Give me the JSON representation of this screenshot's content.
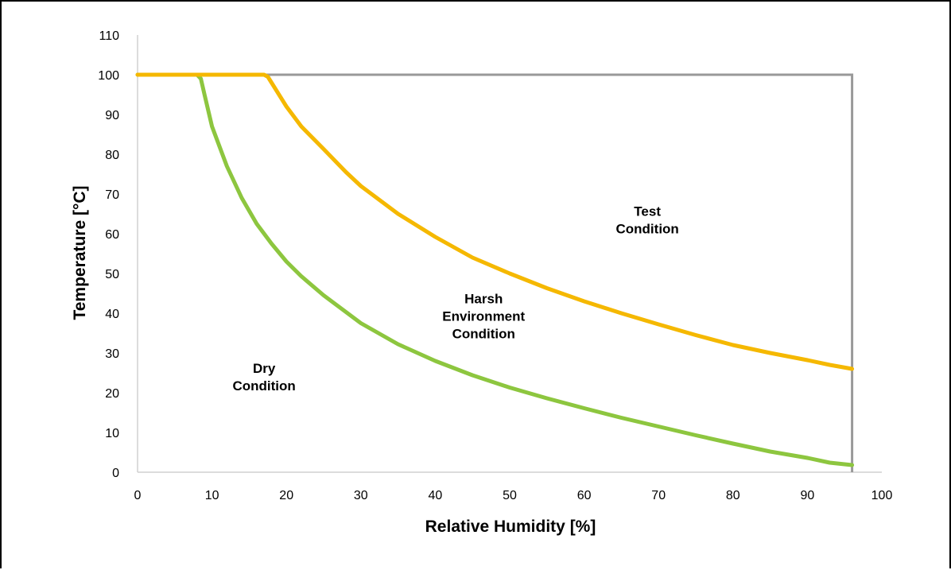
{
  "chart_data": {
    "type": "line",
    "title": "",
    "xlabel": "Relative Humidity [%]",
    "ylabel": "Temperature [°C]",
    "xlim": [
      0,
      100
    ],
    "ylim": [
      0,
      110
    ],
    "x_ticks": [
      "0",
      "10",
      "20",
      "30",
      "40",
      "50",
      "60",
      "70",
      "80",
      "90",
      "100"
    ],
    "y_ticks": [
      "0",
      "10",
      "20",
      "30",
      "40",
      "50",
      "60",
      "70",
      "80",
      "90",
      "100",
      "110"
    ],
    "grid": false,
    "legend": "none",
    "series": [
      {
        "color": "#8dc63f",
        "points": [
          [
            0,
            100
          ],
          [
            8,
            100
          ],
          [
            8.5,
            99
          ],
          [
            9,
            95
          ],
          [
            10,
            87
          ],
          [
            12,
            77
          ],
          [
            14,
            69
          ],
          [
            16,
            62.5
          ],
          [
            18,
            57.5
          ],
          [
            20,
            53
          ],
          [
            22,
            49.3
          ],
          [
            25,
            44.5
          ],
          [
            30,
            37.5
          ],
          [
            35,
            32.2
          ],
          [
            40,
            28
          ],
          [
            45,
            24.4
          ],
          [
            50,
            21.3
          ],
          [
            55,
            18.6
          ],
          [
            60,
            16.1
          ],
          [
            65,
            13.7
          ],
          [
            70,
            11.5
          ],
          [
            75,
            9.3
          ],
          [
            80,
            7.2
          ],
          [
            85,
            5.2
          ],
          [
            90,
            3.6
          ],
          [
            93,
            2.4
          ],
          [
            96,
            1.8
          ]
        ]
      },
      {
        "color": "#f5b800",
        "points": [
          [
            0,
            100
          ],
          [
            17,
            100
          ],
          [
            17.5,
            99.5
          ],
          [
            18,
            98
          ],
          [
            20,
            92
          ],
          [
            22,
            87
          ],
          [
            25,
            81.3
          ],
          [
            28,
            75.5
          ],
          [
            30,
            72
          ],
          [
            35,
            65
          ],
          [
            40,
            59.2
          ],
          [
            45,
            54
          ],
          [
            50,
            50
          ],
          [
            55,
            46.3
          ],
          [
            60,
            43
          ],
          [
            65,
            40
          ],
          [
            70,
            37.2
          ],
          [
            75,
            34.5
          ],
          [
            80,
            32
          ],
          [
            85,
            30
          ],
          [
            90,
            28.2
          ],
          [
            93,
            27
          ],
          [
            96,
            26
          ]
        ]
      }
    ],
    "limit_lines": {
      "color": "#999999",
      "points": [
        [
          0,
          100
        ],
        [
          96,
          100
        ],
        [
          96,
          0
        ]
      ]
    },
    "annotations": [
      {
        "lines": [
          "Test",
          "Condition"
        ],
        "x": 68.5,
        "y": 64.5
      },
      {
        "lines": [
          "Harsh",
          "Environment",
          "Condition"
        ],
        "x": 46.5,
        "y": 42.5
      },
      {
        "lines": [
          "Dry",
          "Condition"
        ],
        "x": 17,
        "y": 25
      }
    ]
  }
}
